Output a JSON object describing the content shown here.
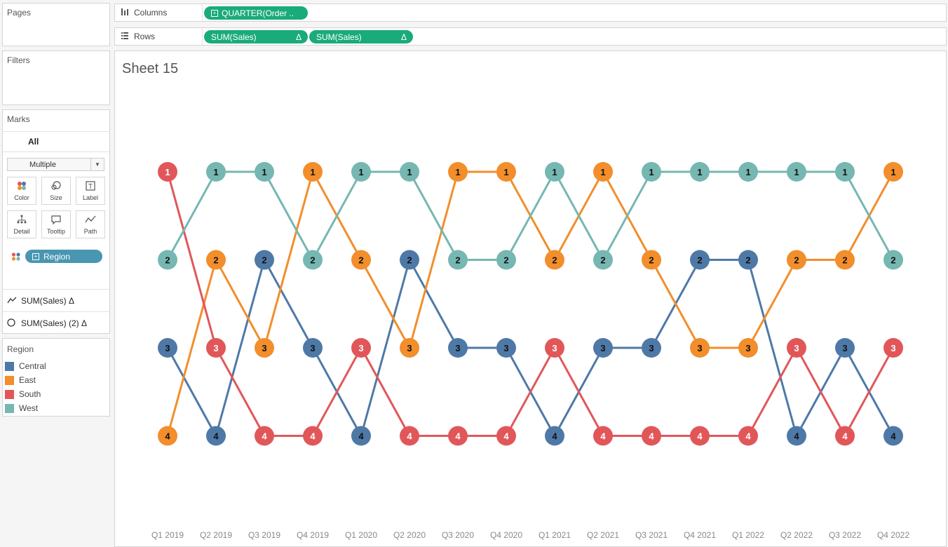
{
  "pages": {
    "title": "Pages"
  },
  "filters": {
    "title": "Filters"
  },
  "shelves": {
    "columns": {
      "label": "Columns",
      "icon": "columns-icon",
      "pills": [
        {
          "label": "QUARTER(Order ..",
          "icon": "plus-box-icon"
        }
      ]
    },
    "rows": {
      "label": "Rows",
      "icon": "rows-icon",
      "pills": [
        {
          "label": "SUM(Sales)",
          "suffix": "Δ"
        },
        {
          "label": "SUM(Sales)",
          "suffix": "Δ"
        }
      ]
    }
  },
  "marks": {
    "title": "Marks",
    "tab": "All",
    "mark_type": "Multiple",
    "buttons": [
      {
        "label": "Color",
        "icon": "color-icon"
      },
      {
        "label": "Size",
        "icon": "size-icon"
      },
      {
        "label": "Label",
        "icon": "label-icon"
      },
      {
        "label": "Detail",
        "icon": "detail-icon"
      },
      {
        "label": "Tooltip",
        "icon": "tooltip-icon"
      },
      {
        "label": "Path",
        "icon": "path-icon"
      }
    ],
    "color_field": "Region",
    "measures": [
      {
        "label": "SUM(Sales) Δ",
        "icon": "line-icon"
      },
      {
        "label": "SUM(Sales) (2) Δ",
        "icon": "circle-icon"
      }
    ]
  },
  "legend": {
    "title": "Region",
    "items": [
      {
        "label": "Central",
        "color": "#4e79a7"
      },
      {
        "label": "East",
        "color": "#f28e2b"
      },
      {
        "label": "South",
        "color": "#e15759"
      },
      {
        "label": "West",
        "color": "#76b7b2"
      }
    ]
  },
  "sheet": {
    "title": "Sheet 15"
  },
  "chart_data": {
    "type": "line",
    "subtype": "bump chart (rank by quarter)",
    "x": [
      "Q1 2019",
      "Q2 2019",
      "Q3 2019",
      "Q4 2019",
      "Q1 2020",
      "Q2 2020",
      "Q3 2020",
      "Q4 2020",
      "Q1 2021",
      "Q2 2021",
      "Q3 2021",
      "Q4 2021",
      "Q1 2022",
      "Q2 2022",
      "Q3 2022",
      "Q4 2022"
    ],
    "ylim": [
      1,
      4
    ],
    "y_reversed": true,
    "grid": false,
    "series": [
      {
        "name": "Central",
        "color": "#4e79a7",
        "values": [
          3,
          4,
          2,
          3,
          4,
          2,
          3,
          3,
          4,
          3,
          3,
          2,
          2,
          4,
          3,
          4
        ]
      },
      {
        "name": "East",
        "color": "#f28e2b",
        "values": [
          4,
          2,
          3,
          1,
          2,
          3,
          1,
          1,
          2,
          1,
          2,
          3,
          3,
          2,
          2,
          1
        ]
      },
      {
        "name": "South",
        "color": "#e15759",
        "values": [
          1,
          3,
          4,
          4,
          3,
          4,
          4,
          4,
          3,
          4,
          4,
          4,
          4,
          3,
          4,
          3
        ]
      },
      {
        "name": "West",
        "color": "#76b7b2",
        "values": [
          2,
          1,
          1,
          2,
          1,
          1,
          2,
          2,
          1,
          2,
          1,
          1,
          1,
          1,
          1,
          2
        ]
      }
    ]
  }
}
